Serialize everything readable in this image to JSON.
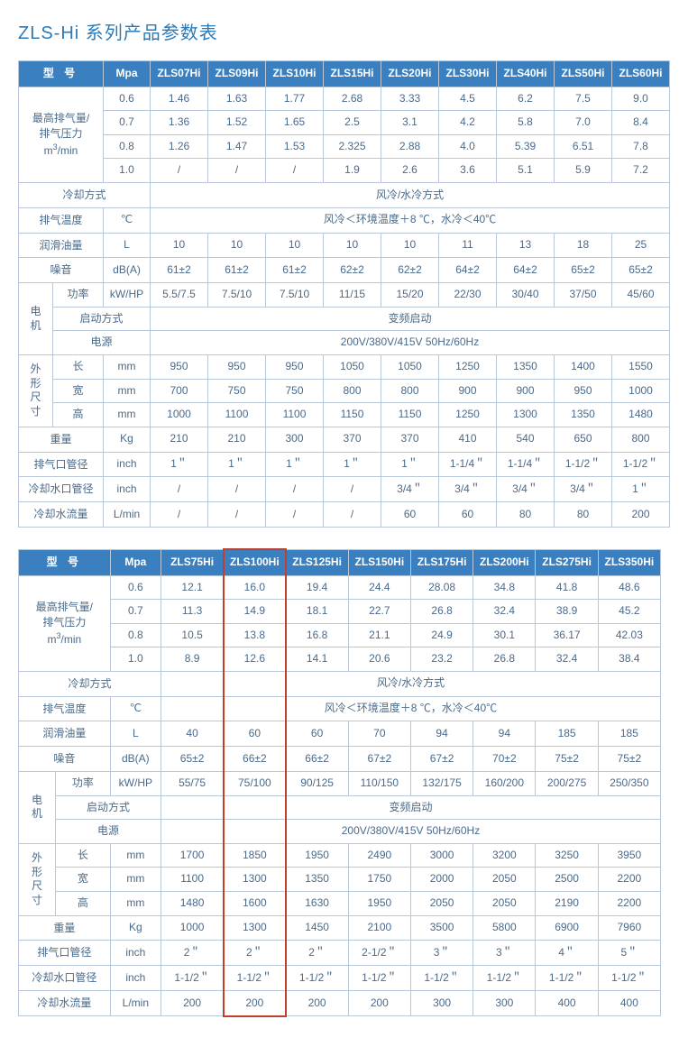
{
  "title": "ZLS-Hi 系列产品参数表",
  "colors": {
    "header_bg": "#3a80c0",
    "header_text": "#ffffff",
    "border": "#b8c8d8",
    "text": "#4a6a8a",
    "title": "#2a7ab8",
    "highlight_border": "#c04030",
    "background": "#ffffff"
  },
  "fonts": {
    "title_size": 20,
    "cell_size": 12
  },
  "tables": [
    {
      "header": [
        "型   号",
        "Mpa",
        "ZLS07Hi",
        "ZLS09Hi",
        "ZLS10Hi",
        "ZLS15Hi",
        "ZLS20Hi",
        "ZLS30Hi",
        "ZLS40Hi",
        "ZLS50Hi",
        "ZLS60Hi"
      ],
      "rows": [
        {
          "labels": [
            "最高排气量/\n排气压力\nm³/min",
            "0.6"
          ],
          "vals": [
            "1.46",
            "1.63",
            "1.77",
            "2.68",
            "3.33",
            "4.5",
            "6.2",
            "7.5",
            "9.0"
          ],
          "rowspan": 4
        },
        {
          "labels": [
            null,
            "0.7"
          ],
          "vals": [
            "1.36",
            "1.52",
            "1.65",
            "2.5",
            "3.1",
            "4.2",
            "5.8",
            "7.0",
            "8.4"
          ]
        },
        {
          "labels": [
            null,
            "0.8"
          ],
          "vals": [
            "1.26",
            "1.47",
            "1.53",
            "2.325",
            "2.88",
            "4.0",
            "5.39",
            "6.51",
            "7.8"
          ]
        },
        {
          "labels": [
            null,
            "1.0"
          ],
          "vals": [
            "/",
            "/",
            "/",
            "1.9",
            "2.6",
            "3.6",
            "5.1",
            "5.9",
            "7.2"
          ]
        },
        {
          "labels": [
            "冷却方式",
            null
          ],
          "span": true,
          "span_text": "风冷/水冷方式",
          "colspan": 2
        },
        {
          "labels": [
            "排气温度",
            "℃"
          ],
          "span": true,
          "span_text": "风冷＜环境温度＋8 ℃，水冷＜40℃"
        },
        {
          "labels": [
            "润滑油量",
            "L"
          ],
          "vals": [
            "10",
            "10",
            "10",
            "10",
            "10",
            "11",
            "13",
            "18",
            "25"
          ]
        },
        {
          "labels": [
            "噪音",
            "dB(A)"
          ],
          "vals": [
            "61±2",
            "61±2",
            "61±2",
            "62±2",
            "62±2",
            "64±2",
            "64±2",
            "65±2",
            "65±2"
          ]
        },
        {
          "labels": [
            "电\n机",
            "功率",
            "kW/HP"
          ],
          "vals": [
            "5.5/7.5",
            "7.5/10",
            "7.5/10",
            "11/15",
            "15/20",
            "22/30",
            "30/40",
            "37/50",
            "45/60"
          ],
          "rowspan": 3,
          "three": true
        },
        {
          "labels": [
            null,
            "启动方式",
            null
          ],
          "span": true,
          "span_text": "变频启动",
          "three": true,
          "colspan": 2
        },
        {
          "labels": [
            null,
            "电源",
            null
          ],
          "span": true,
          "span_text": "200V/380V/415V 50Hz/60Hz",
          "three": true,
          "colspan": 2
        },
        {
          "labels": [
            "外\n形\n尺\n寸",
            "长",
            "mm"
          ],
          "vals": [
            "950",
            "950",
            "950",
            "1050",
            "1050",
            "1250",
            "1350",
            "1400",
            "1550"
          ],
          "rowspan": 3,
          "three": true
        },
        {
          "labels": [
            null,
            "宽",
            "mm"
          ],
          "vals": [
            "700",
            "750",
            "750",
            "800",
            "800",
            "900",
            "900",
            "950",
            "1000"
          ],
          "three": true
        },
        {
          "labels": [
            null,
            "高",
            "mm"
          ],
          "vals": [
            "1000",
            "1100",
            "1100",
            "1150",
            "1150",
            "1250",
            "1300",
            "1350",
            "1480"
          ],
          "three": true
        },
        {
          "labels": [
            "重量",
            "Kg"
          ],
          "vals": [
            "210",
            "210",
            "300",
            "370",
            "370",
            "410",
            "540",
            "650",
            "800"
          ]
        },
        {
          "labels": [
            "排气口管径",
            "inch"
          ],
          "vals": [
            "1＂",
            "1＂",
            "1＂",
            "1＂",
            "1＂",
            "1-1/4＂",
            "1-1/4＂",
            "1-1/2＂",
            "1-1/2＂"
          ]
        },
        {
          "labels": [
            "冷却水口管径",
            "inch"
          ],
          "vals": [
            "/",
            "/",
            "/",
            "/",
            "3/4＂",
            "3/4＂",
            "3/4＂",
            "3/4＂",
            "1＂"
          ]
        },
        {
          "labels": [
            "冷却水流量",
            "L/min"
          ],
          "vals": [
            "/",
            "/",
            "/",
            "/",
            "60",
            "60",
            "80",
            "80",
            "200"
          ]
        }
      ]
    },
    {
      "header": [
        "型   号",
        "Mpa",
        "ZLS75Hi",
        "ZLS100Hi",
        "ZLS125Hi",
        "ZLS150Hi",
        "ZLS175Hi",
        "ZLS200Hi",
        "ZLS275Hi",
        "ZLS350Hi"
      ],
      "highlight_col": 3,
      "rows": [
        {
          "labels": [
            "最高排气量/\n排气压力\nm³/min",
            "0.6"
          ],
          "vals": [
            "12.1",
            "16.0",
            "19.4",
            "24.4",
            "28.08",
            "34.8",
            "41.8",
            "48.6"
          ],
          "rowspan": 4
        },
        {
          "labels": [
            null,
            "0.7"
          ],
          "vals": [
            "11.3",
            "14.9",
            "18.1",
            "22.7",
            "26.8",
            "32.4",
            "38.9",
            "45.2"
          ]
        },
        {
          "labels": [
            null,
            "0.8"
          ],
          "vals": [
            "10.5",
            "13.8",
            "16.8",
            "21.1",
            "24.9",
            "30.1",
            "36.17",
            "42.03"
          ]
        },
        {
          "labels": [
            null,
            "1.0"
          ],
          "vals": [
            "8.9",
            "12.6",
            "14.1",
            "20.6",
            "23.2",
            "26.8",
            "32.4",
            "38.4"
          ]
        },
        {
          "labels": [
            "冷却方式",
            null
          ],
          "span": true,
          "span_text": "风冷/水冷方式",
          "colspan": 2
        },
        {
          "labels": [
            "排气温度",
            "℃"
          ],
          "span": true,
          "span_text": "风冷＜环境温度＋8 ℃，水冷＜40℃"
        },
        {
          "labels": [
            "润滑油量",
            "L"
          ],
          "vals": [
            "40",
            "60",
            "60",
            "70",
            "94",
            "94",
            "185",
            "185"
          ]
        },
        {
          "labels": [
            "噪音",
            "dB(A)"
          ],
          "vals": [
            "65±2",
            "66±2",
            "66±2",
            "67±2",
            "67±2",
            "70±2",
            "75±2",
            "75±2"
          ]
        },
        {
          "labels": [
            "电\n机",
            "功率",
            "kW/HP"
          ],
          "vals": [
            "55/75",
            "75/100",
            "90/125",
            "110/150",
            "132/175",
            "160/200",
            "200/275",
            "250/350"
          ],
          "rowspan": 3,
          "three": true
        },
        {
          "labels": [
            null,
            "启动方式",
            null
          ],
          "span": true,
          "span_text": "变频启动",
          "three": true,
          "colspan": 2
        },
        {
          "labels": [
            null,
            "电源",
            null
          ],
          "span": true,
          "span_text": "200V/380V/415V 50Hz/60Hz",
          "three": true,
          "colspan": 2
        },
        {
          "labels": [
            "外\n形\n尺\n寸",
            "长",
            "mm"
          ],
          "vals": [
            "1700",
            "1850",
            "1950",
            "2490",
            "3000",
            "3200",
            "3250",
            "3950"
          ],
          "rowspan": 3,
          "three": true
        },
        {
          "labels": [
            null,
            "宽",
            "mm"
          ],
          "vals": [
            "1100",
            "1300",
            "1350",
            "1750",
            "2000",
            "2050",
            "2500",
            "2200"
          ],
          "three": true
        },
        {
          "labels": [
            null,
            "高",
            "mm"
          ],
          "vals": [
            "1480",
            "1600",
            "1630",
            "1950",
            "2050",
            "2050",
            "2190",
            "2200"
          ],
          "three": true
        },
        {
          "labels": [
            "重量",
            "Kg"
          ],
          "vals": [
            "1000",
            "1300",
            "1450",
            "2100",
            "3500",
            "5800",
            "6900",
            "7960"
          ]
        },
        {
          "labels": [
            "排气口管径",
            "inch"
          ],
          "vals": [
            "2＂",
            "2＂",
            "2＂",
            "2-1/2＂",
            "3＂",
            "3＂",
            "4＂",
            "5＂"
          ]
        },
        {
          "labels": [
            "冷却水口管径",
            "inch"
          ],
          "vals": [
            "1-1/2＂",
            "1-1/2＂",
            "1-1/2＂",
            "1-1/2＂",
            "1-1/2＂",
            "1-1/2＂",
            "1-1/2＂",
            "1-1/2＂"
          ]
        },
        {
          "labels": [
            "冷却水流量",
            "L/min"
          ],
          "vals": [
            "200",
            "200",
            "200",
            "200",
            "300",
            "300",
            "400",
            "400"
          ]
        }
      ]
    }
  ]
}
